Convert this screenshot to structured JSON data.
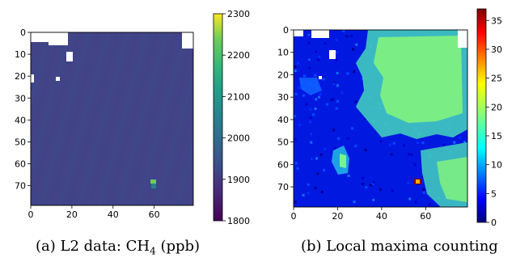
{
  "captions": {
    "a": {
      "prefix": "(a) L2 data: CH",
      "sub": "4",
      "suffix": " (ppb)"
    },
    "b": {
      "text": "(b) Local maxima counting"
    }
  },
  "chart_data": [
    {
      "type": "heatmap",
      "panel": "a",
      "x_ticks": [
        "0",
        "20",
        "40",
        "60"
      ],
      "y_ticks": [
        "0",
        "10",
        "20",
        "30",
        "40",
        "50",
        "60",
        "70"
      ],
      "xlim": [
        0,
        79
      ],
      "ylim": [
        0,
        79
      ],
      "colorbar": {
        "colormap": "viridis",
        "min": 1800,
        "max": 2300,
        "ticks": [
          "1800",
          "1900",
          "2000",
          "2100",
          "2200",
          "2300"
        ]
      },
      "background_value": 1890,
      "hotspot": {
        "x": 58,
        "y": 70,
        "value": 2050
      },
      "missing_color": "#ffffff"
    },
    {
      "type": "heatmap",
      "panel": "b",
      "x_ticks": [
        "0",
        "20",
        "40",
        "60"
      ],
      "y_ticks": [
        "0",
        "10",
        "20",
        "30",
        "40",
        "50",
        "60",
        "70"
      ],
      "xlim": [
        0,
        79
      ],
      "ylim": [
        0,
        79
      ],
      "colorbar": {
        "colormap": "jet",
        "min": 0,
        "max": 37,
        "ticks": [
          "0",
          "5",
          "10",
          "15",
          "20",
          "25",
          "30",
          "35"
        ]
      },
      "background_value": 3,
      "high_region_value": 15,
      "hotspot": {
        "x": 58,
        "y": 70,
        "value": 35
      },
      "missing_color": "#ffffff"
    }
  ]
}
